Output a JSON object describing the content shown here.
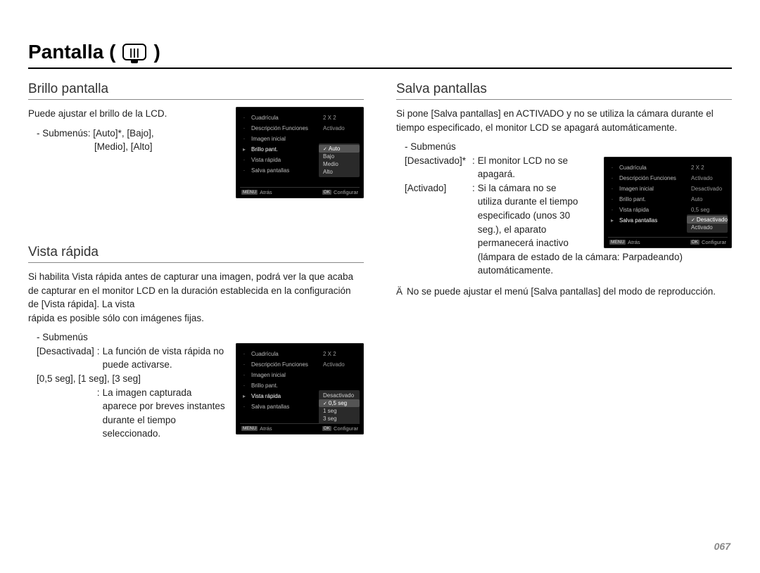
{
  "page": {
    "title_prefix": "Pantalla (",
    "title_suffix": " )",
    "number": "067"
  },
  "sec1": {
    "heading": "Brillo pantalla",
    "p1": "Puede ajustar el brillo de la LCD.",
    "p2a": "- Submenús: [Auto]*, [Bajo],",
    "p2b": "[Medio], [Alto]",
    "lcd": {
      "rows": [
        {
          "icon": "",
          "label": "Cuadrícula",
          "val": "2 X 2"
        },
        {
          "icon": "",
          "label": "Descripción Funciones",
          "val": "Activado"
        },
        {
          "icon": "",
          "label": "Imagen inicial",
          "val": ""
        },
        {
          "icon": "▸",
          "label": "Brillo pant.",
          "val": "",
          "sel": true
        },
        {
          "icon": "",
          "label": "Vista rápida",
          "val": ""
        },
        {
          "icon": "",
          "label": "Salva pantallas",
          "val": ""
        }
      ],
      "submenu": {
        "options": [
          "Auto",
          "Bajo",
          "Medio",
          "Alto"
        ],
        "selected": 0
      },
      "footer": {
        "back_key": "MENU",
        "back": "Atrás",
        "ok_key": "OK",
        "ok": "Configurar"
      }
    }
  },
  "sec2": {
    "heading": "Vista rápida",
    "p1": "Si habilita Vista rápida antes de capturar una imagen, podrá ver la que acaba de capturar en el monitor LCD en la duración establecida en la configuración de [Vista rápida]. La vista",
    "p1b": "rápida es posible sólo con imágenes fijas.",
    "sub_label": "- Submenús",
    "def1_term": "[Desactivada]",
    "def1_def": "La función de vista rápida no puede activarse.",
    "def2_term": "[0,5 seg], [1 seg], [3 seg]",
    "def2_def": "La imagen capturada aparece por breves instantes durante el tiempo seleccionado.",
    "lcd": {
      "rows": [
        {
          "icon": "",
          "label": "Cuadrícula",
          "val": "2 X 2"
        },
        {
          "icon": "",
          "label": "Descripción Funciones",
          "val": "Activado"
        },
        {
          "icon": "",
          "label": "Imagen inicial",
          "val": ""
        },
        {
          "icon": "",
          "label": "Brillo pant.",
          "val": ""
        },
        {
          "icon": "▸",
          "label": "Vista rápida",
          "val": "",
          "sel": true
        },
        {
          "icon": "",
          "label": "Salva pantallas",
          "val": ""
        }
      ],
      "submenu": {
        "options": [
          "Desactivado",
          "0,5 seg",
          "1 seg",
          "3 seg"
        ],
        "selected": 1
      },
      "footer": {
        "back_key": "MENU",
        "back": "Atrás",
        "ok_key": "OK",
        "ok": "Configurar"
      }
    }
  },
  "sec3": {
    "heading": "Salva pantallas",
    "p1": "Si pone [Salva pantallas] en ACTIVADO y no se utiliza la cámara durante el tiempo especificado, el monitor LCD se apagará automáticamente.",
    "sub_label": "- Submenús",
    "def1_term": "[Desactivado]*",
    "def1_def_a": "El monitor LCD no se",
    "def1_def_b": "apagará.",
    "def2_term": "[Activado]",
    "def2_def_a": "Si la cámara no se",
    "def2_def_b": "utiliza durante el tiempo",
    "def2_def_c": "especificado (unos 30",
    "def2_def_d": "seg.), el aparato",
    "def2_def_e": "permanecerá inactivo",
    "def2_def_f": "(lámpara de estado de la cámara: Parpadeando) automáticamente.",
    "note_mark": "Ä",
    "note": "No se puede ajustar el menú [Salva pantallas] del modo de reproducción.",
    "lcd": {
      "rows": [
        {
          "icon": "",
          "label": "Cuadrícula",
          "val": "2 X 2"
        },
        {
          "icon": "",
          "label": "Descripción Funciones",
          "val": "Activado"
        },
        {
          "icon": "",
          "label": "Imagen inicial",
          "val": "Desactivado"
        },
        {
          "icon": "",
          "label": "Brillo pant.",
          "val": "Auto"
        },
        {
          "icon": "",
          "label": "Vista rápida",
          "val": "0,5 seg"
        },
        {
          "icon": "▸",
          "label": "Salva pantallas",
          "val": "",
          "sel": true
        }
      ],
      "submenu": {
        "options": [
          "Desactivado",
          "Activado"
        ],
        "selected": 0
      },
      "footer": {
        "back_key": "MENU",
        "back": "Atrás",
        "ok_key": "OK",
        "ok": "Configurar"
      }
    }
  },
  "colon": " : "
}
